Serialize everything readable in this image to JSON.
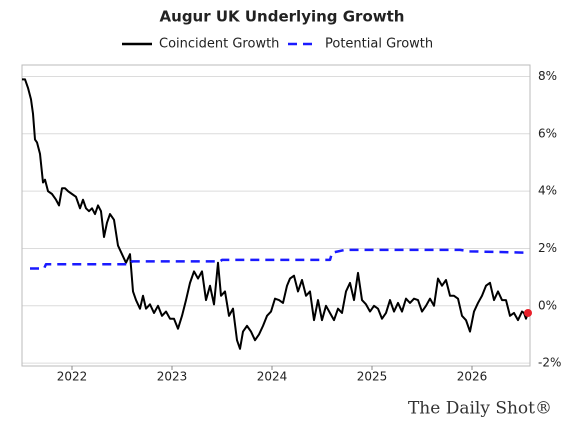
{
  "chart_data": {
    "type": "line",
    "title": "Augur UK Underlying Growth",
    "source": "The Daily Shot®",
    "legend": "top",
    "grid": true,
    "last_point_color": "#e8202a",
    "xlim": [
      2021.5,
      2026.58
    ],
    "xticks": [
      2022,
      2023,
      2024,
      2025,
      2026
    ],
    "ylim": [
      -2.1,
      8.4
    ],
    "yticks": [
      {
        "value": -2,
        "label": "-2%"
      },
      {
        "value": 0,
        "label": "0%"
      },
      {
        "value": 2,
        "label": "2%"
      },
      {
        "value": 4,
        "label": "4%"
      },
      {
        "value": 6,
        "label": "6%"
      },
      {
        "value": 8,
        "label": "8%"
      }
    ],
    "series": [
      {
        "name": "Coincident Growth",
        "color": "#000000",
        "dash": false,
        "x": [
          2021.5,
          2021.53,
          2021.56,
          2021.59,
          2021.61,
          2021.63,
          2021.65,
          2021.68,
          2021.71,
          2021.73,
          2021.76,
          2021.8,
          2021.84,
          2021.87,
          2021.9,
          2021.93,
          2021.96,
          2022.0,
          2022.04,
          2022.08,
          2022.11,
          2022.14,
          2022.17,
          2022.2,
          2022.23,
          2022.26,
          2022.29,
          2022.32,
          2022.35,
          2022.38,
          2022.42,
          2022.46,
          2022.5,
          2022.54,
          2022.58,
          2022.61,
          2022.64,
          2022.68,
          2022.71,
          2022.74,
          2022.78,
          2022.82,
          2022.86,
          2022.9,
          2022.94,
          2022.98,
          2023.02,
          2023.06,
          2023.1,
          2023.14,
          2023.18,
          2023.22,
          2023.26,
          2023.3,
          2023.34,
          2023.38,
          2023.42,
          2023.46,
          2023.49,
          2023.53,
          2023.57,
          2023.61,
          2023.65,
          2023.68,
          2023.71,
          2023.75,
          2023.79,
          2023.83,
          2023.87,
          2023.91,
          2023.95,
          2023.99,
          2024.03,
          2024.07,
          2024.11,
          2024.15,
          2024.18,
          2024.22,
          2024.26,
          2024.3,
          2024.34,
          2024.38,
          2024.42,
          2024.46,
          2024.5,
          2024.54,
          2024.58,
          2024.62,
          2024.66,
          2024.7,
          2024.74,
          2024.78,
          2024.82,
          2024.86,
          2024.9,
          2024.94,
          2024.98,
          2025.02,
          2025.06,
          2025.1,
          2025.14,
          2025.18,
          2025.22,
          2025.26,
          2025.3,
          2025.34,
          2025.38,
          2025.42,
          2025.46,
          2025.5,
          2025.54,
          2025.58,
          2025.62,
          2025.66,
          2025.7,
          2025.74,
          2025.78,
          2025.82,
          2025.86,
          2025.9,
          2025.94,
          2025.98,
          2026.02,
          2026.06,
          2026.1,
          2026.14,
          2026.18,
          2026.22,
          2026.26,
          2026.3,
          2026.34,
          2026.38,
          2026.42,
          2026.46,
          2026.5,
          2026.52,
          2026.54,
          2026.56
        ],
        "values": [
          7.9,
          7.9,
          7.6,
          7.2,
          6.7,
          5.8,
          5.7,
          5.3,
          4.3,
          4.4,
          4.0,
          3.9,
          3.7,
          3.5,
          4.1,
          4.1,
          4.0,
          3.9,
          3.8,
          3.4,
          3.7,
          3.4,
          3.3,
          3.4,
          3.2,
          3.5,
          3.3,
          2.4,
          2.9,
          3.2,
          3.0,
          2.1,
          1.8,
          1.5,
          1.8,
          0.5,
          0.2,
          -0.1,
          0.35,
          -0.1,
          0.05,
          -0.25,
          0.0,
          -0.35,
          -0.2,
          -0.45,
          -0.45,
          -0.8,
          -0.35,
          0.2,
          0.8,
          1.2,
          0.95,
          1.2,
          0.2,
          0.7,
          0.05,
          1.5,
          0.35,
          0.5,
          -0.35,
          -0.1,
          -1.2,
          -1.5,
          -0.9,
          -0.7,
          -0.9,
          -1.2,
          -1.0,
          -0.7,
          -0.35,
          -0.2,
          0.25,
          0.2,
          0.1,
          0.7,
          0.95,
          1.05,
          0.5,
          0.9,
          0.35,
          0.5,
          -0.5,
          0.2,
          -0.5,
          0.0,
          -0.25,
          -0.5,
          -0.1,
          -0.25,
          0.5,
          0.8,
          0.2,
          1.15,
          0.2,
          0.05,
          -0.2,
          0.0,
          -0.1,
          -0.45,
          -0.25,
          0.2,
          -0.2,
          0.1,
          -0.2,
          0.25,
          0.1,
          0.25,
          0.2,
          -0.2,
          0.0,
          0.25,
          0.0,
          0.95,
          0.7,
          0.9,
          0.35,
          0.35,
          0.25,
          -0.35,
          -0.5,
          -0.9,
          -0.2,
          0.1,
          0.35,
          0.7,
          0.8,
          0.2,
          0.5,
          0.2,
          0.2,
          -0.35,
          -0.25,
          -0.5,
          -0.2,
          -0.25,
          -0.45,
          -0.25
        ]
      },
      {
        "name": "Potential Growth",
        "color": "#1a1aff",
        "dash": true,
        "x": [
          2021.58,
          2021.72,
          2021.74,
          2022.58,
          2022.6,
          2023.48,
          2023.5,
          2024.58,
          2024.6,
          2024.73,
          2025.88,
          2025.98,
          2026.56
        ],
        "values": [
          1.3,
          1.3,
          1.45,
          1.45,
          1.55,
          1.55,
          1.6,
          1.6,
          1.85,
          1.95,
          1.95,
          1.9,
          1.85
        ]
      }
    ]
  }
}
